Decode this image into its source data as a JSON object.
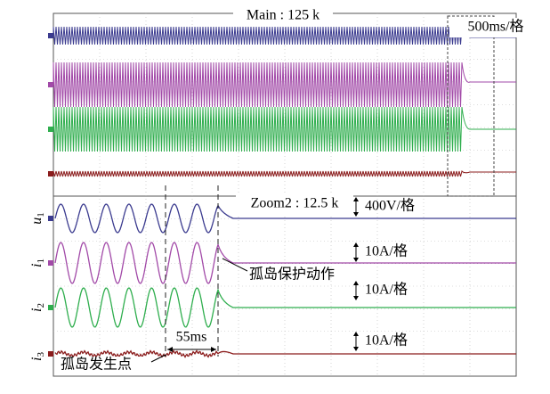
{
  "main_panel": {
    "title": "Main : 125 k",
    "time_scale": "500ms/格"
  },
  "zoom_panel": {
    "title": "Zoom2 : 12.5 k",
    "channels": [
      {
        "symbol": "u",
        "index": "1",
        "scale": "400V/格"
      },
      {
        "symbol": "i",
        "index": "1",
        "scale": "10A/格"
      },
      {
        "symbol": "i",
        "index": "2",
        "scale": "10A/格"
      },
      {
        "symbol": "i",
        "index": "3",
        "scale": "10A/格"
      }
    ],
    "annotations": {
      "protection": "孤岛保护动作",
      "delay": "55ms",
      "islanding_start": "孤岛发生点"
    }
  }
}
